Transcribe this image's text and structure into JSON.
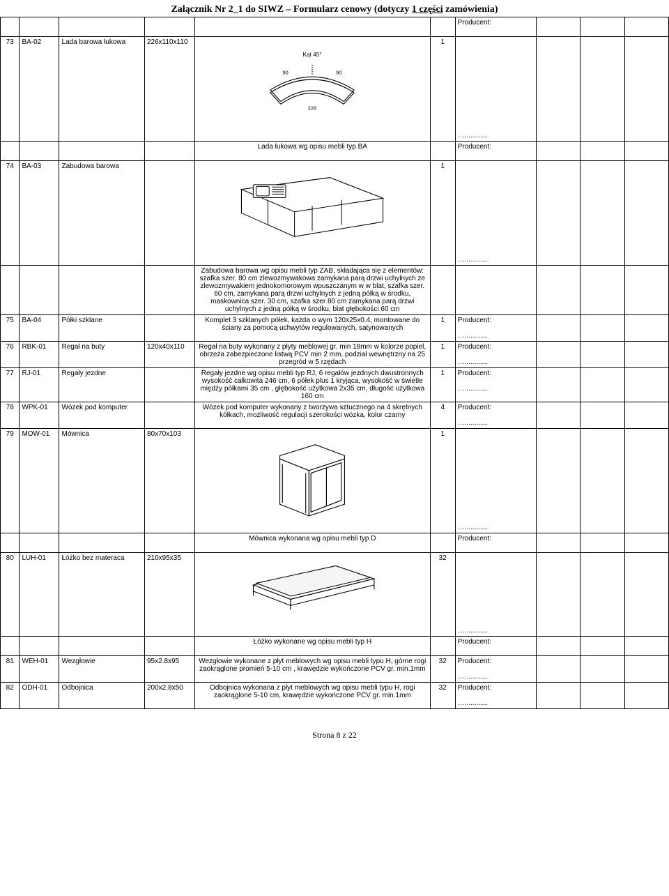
{
  "title": {
    "prefix": "Załącznik Nr 2_1 do SIWZ",
    "dash": " – ",
    "middle": "Formularz cenowy (dotyczy ",
    "underlined": "1 części",
    "suffix": " zamówienia)"
  },
  "labels": {
    "producent": "Producent:",
    "dots": "…............",
    "footer": "Strona 8 z 22"
  },
  "diag_labels": {
    "angle": "Kąt 45°",
    "ninety": "90",
    "width": "226"
  },
  "rows": [
    {
      "lp": "73",
      "code": "BA-02",
      "name": "Lada barowa łukowa",
      "dim": "226x110x110",
      "desc": "",
      "qty": "1",
      "diagram": "arc",
      "prod_layout": "top_bottom",
      "height": "h-tall",
      "desc_after": "Lada łukowa wg opisu mebli typ BA"
    },
    {
      "lp": "74",
      "code": "BA-03",
      "name": "Zabudowa barowa",
      "dim": "",
      "desc": "",
      "qty": "1",
      "diagram": "counter",
      "prod_layout": "top_bottom",
      "height": "h-tall",
      "desc_after": "Zabudowa barowa wg opisu mebli typ ZAB, składająca się z elementów: szafka szer. 80 cm zlewozmywakowa zamykana parą drzwi uchylnych ze zlewozmywakiem jednokomorowym wpuszczanym w w blat, szafka szer. 60 cm, zamykana parą drzwi uchylnych z jedną półką w środku, maskownica szer. 30 cm, szafka szer 80 cm zamykana parą drzwi uchylnych z jedną półką w środku, blat głębokości 60 cm"
    },
    {
      "lp": "75",
      "code": "BA-04",
      "name": "Półki szklane",
      "dim": "",
      "desc": "Komplet 3 szklanych półek, każda o wym 120x25x0.4, montowane do ściany za pomocą uchwytów regulowanych, satynowanych",
      "qty": "1",
      "diagram": "",
      "prod_layout": "mid",
      "height": ""
    },
    {
      "lp": "76",
      "code": "RBK-01",
      "name": "Regał na buty",
      "dim": "120x40x110",
      "desc": "Regał na buty wykonany z płyty meblowej  gr. min 18mm w kolorze popiel, obrzeża zabezpieczone listwą PCV min 2 mm, podział wewnętrzny na 25 przegród w 5 rzędach",
      "qty": "1",
      "diagram": "",
      "prod_layout": "mid",
      "height": ""
    },
    {
      "lp": "77",
      "code": "RJ-01",
      "name": "Regały jezdne",
      "dim": "",
      "desc": "Regały jezdne wg opisu mebli typ RJ, 6 regałów jezdnych dwustronnych wysokość całkowita 246 cm, 6 półek plus 1 kryjąca, wysokość w świetle między półkami 35 cm , głębokość użytkowa 2x35 cm, długość użytkowa 160 cm",
      "qty": "1",
      "diagram": "",
      "prod_layout": "mid",
      "height": ""
    },
    {
      "lp": "78",
      "code": "WPK-01",
      "name": "Wózek pod komputer",
      "dim": "",
      "desc": "Wózek pod komputer wykonany z tworzywa sztucznego na 4 skrętnych kółkach, możliwość regulacji szerokości wózka, kolor czarny",
      "qty": "4",
      "diagram": "",
      "prod_layout": "mid",
      "height": ""
    },
    {
      "lp": "79",
      "code": "MOW-01",
      "name": "Mównica",
      "dim": "80x70x103",
      "desc": "",
      "qty": "1",
      "diagram": "lectern",
      "prod_layout": "top_bottom",
      "height": "h-tall",
      "desc_after": "Mównica wykonana wg opisu mebli typ D"
    },
    {
      "lp": "80",
      "code": "LUH-01",
      "name": "Łóżko bez materaca",
      "dim": "210x95x35",
      "desc": "",
      "qty": "32",
      "diagram": "bed",
      "prod_layout": "top_bottom",
      "height": "h-med",
      "desc_after": "Łóżko wykonane wg opisu mebli typ H"
    },
    {
      "lp": "81",
      "code": "WEH-01",
      "name": "Wezgłowie",
      "dim": "95x2.8x95",
      "desc": "Wezgłowie wykonane z płyt meblowych wg opisu mebli typu H, górne rogi zaokrąglone promień 5-10 cm , krawędzie wykończone PCV gr. min.1mm",
      "qty": "32",
      "diagram": "",
      "prod_layout": "mid",
      "height": ""
    },
    {
      "lp": "82",
      "code": "ODH-01",
      "name": "Odbojnica",
      "dim": "200x2.8x50",
      "desc": "Odbojnica wykonana z płyt meblowych wg opisu mebli typu H, rogi zaokrąglone 5-10 cm, krawędzie wykończone PCV gr. min.1mm",
      "qty": "32",
      "diagram": "",
      "prod_layout": "mid",
      "height": ""
    }
  ]
}
